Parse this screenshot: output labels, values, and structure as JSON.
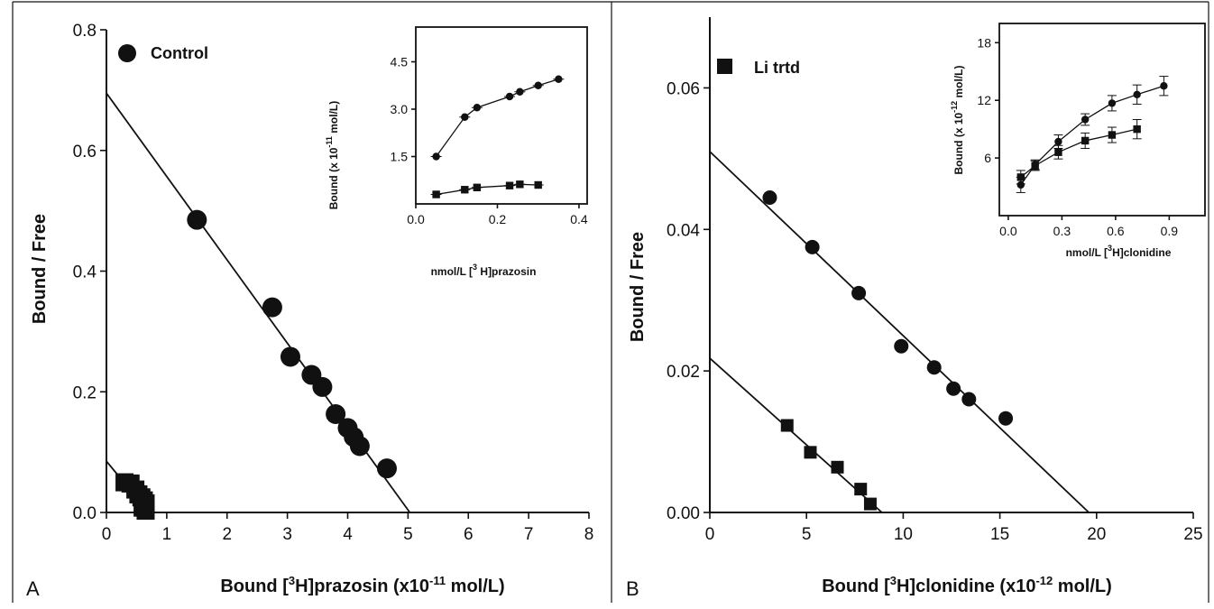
{
  "chart_data": [
    {
      "panel_label": "A",
      "type": "scatter",
      "xlabel": "Bound [3H]prazosin (x10-11 mol/L)",
      "xlabel_parts": {
        "pre": "Bound [",
        "sup1": "3",
        "mid": "H]prazosin (x10",
        "sup2": "-11",
        "post": " mol/L)"
      },
      "ylabel": "Bound / Free",
      "xlim": [
        0,
        8
      ],
      "ylim": [
        0,
        0.8
      ],
      "xticks": [
        "0",
        "1",
        "2",
        "3",
        "4",
        "5",
        "6",
        "7",
        "8"
      ],
      "yticks": [
        "0.0",
        "0.2",
        "0.4",
        "0.6",
        "0.8"
      ],
      "legend": [
        {
          "label": "Control",
          "marker": "circle"
        }
      ],
      "series": [
        {
          "marker": "circle",
          "points": [
            [
              1.5,
              0.485
            ],
            [
              2.75,
              0.34
            ],
            [
              3.05,
              0.258
            ],
            [
              3.4,
              0.228
            ],
            [
              3.58,
              0.208
            ],
            [
              3.8,
              0.163
            ],
            [
              4.0,
              0.14
            ],
            [
              4.1,
              0.125
            ],
            [
              4.2,
              0.11
            ],
            [
              4.65,
              0.073
            ]
          ]
        },
        {
          "marker": "square",
          "points": [
            [
              0.3,
              0.05
            ],
            [
              0.4,
              0.048
            ],
            [
              0.48,
              0.038
            ],
            [
              0.53,
              0.03
            ],
            [
              0.58,
              0.025
            ],
            [
              0.62,
              0.02
            ],
            [
              0.65,
              0.015
            ],
            [
              0.6,
              0.008
            ],
            [
              0.65,
              0.003
            ]
          ]
        }
      ],
      "fit_lines": [
        {
          "from": [
            0,
            0.695
          ],
          "to": [
            5.03,
            0
          ]
        },
        {
          "from": [
            0,
            0.085
          ],
          "to": [
            0.7,
            0
          ]
        }
      ],
      "inset": {
        "xlabel": "nmol/L [3H]prazosin",
        "xlabel_parts": {
          "pre": "nmol/L [",
          "sup1": "3",
          "post": " H]prazosin"
        },
        "ylabel": "Bound (x 10-11 mol/L)",
        "ylabel_parts": {
          "pre": "Bound (x 10",
          "sup": "-11",
          "post": " mol/L)"
        },
        "xlim": [
          0,
          0.42
        ],
        "ylim": [
          0,
          5.6
        ],
        "xticks": [
          {
            "v": 0,
            "t": "0.0"
          },
          {
            "v": 0.2,
            "t": "0.2"
          },
          {
            "v": 0.4,
            "t": "0.4"
          }
        ],
        "yticks": [
          {
            "v": 1.5,
            "t": "1.5"
          },
          {
            "v": 3.0,
            "t": "3.0"
          },
          {
            "v": 4.5,
            "t": "4.5"
          }
        ],
        "series": [
          {
            "marker": "circle",
            "points": [
              [
                0.05,
                1.5
              ],
              [
                0.12,
                2.75
              ],
              [
                0.15,
                3.05
              ],
              [
                0.23,
                3.4
              ],
              [
                0.255,
                3.55
              ],
              [
                0.3,
                3.75
              ],
              [
                0.35,
                3.95
              ]
            ]
          },
          {
            "marker": "square",
            "points": [
              [
                0.05,
                0.3
              ],
              [
                0.12,
                0.45
              ],
              [
                0.15,
                0.52
              ],
              [
                0.23,
                0.58
              ],
              [
                0.255,
                0.62
              ],
              [
                0.3,
                0.6
              ]
            ]
          }
        ]
      }
    },
    {
      "panel_label": "B",
      "type": "scatter",
      "xlabel": "Bound [3H]clonidine (x10-12 mol/L)",
      "xlabel_parts": {
        "pre": "Bound [",
        "sup1": "3",
        "mid": "H]clonidine (x10",
        "sup2": "-12",
        "post": " mol/L)"
      },
      "ylabel": "Bound / Free",
      "xlim": [
        0,
        25
      ],
      "ylim": [
        0,
        0.07
      ],
      "xticks": [
        "0",
        "5",
        "10",
        "15",
        "20",
        "25"
      ],
      "yticks": [
        "0.00",
        "0.02",
        "0.04",
        "0.06"
      ],
      "legend": [
        {
          "label": "Li trtd",
          "marker": "square"
        }
      ],
      "series": [
        {
          "marker": "circle",
          "points": [
            [
              3.1,
              0.0445
            ],
            [
              5.3,
              0.0375
            ],
            [
              7.7,
              0.031
            ],
            [
              9.9,
              0.0235
            ],
            [
              11.6,
              0.0205
            ],
            [
              12.6,
              0.0175
            ],
            [
              13.4,
              0.016
            ],
            [
              15.3,
              0.0133
            ]
          ]
        },
        {
          "marker": "square",
          "points": [
            [
              4.0,
              0.0123
            ],
            [
              5.2,
              0.0085
            ],
            [
              6.6,
              0.0064
            ],
            [
              7.8,
              0.0033
            ],
            [
              8.3,
              0.0012
            ]
          ]
        }
      ],
      "fit_lines": [
        {
          "from": [
            0,
            0.051
          ],
          "to": [
            19.6,
            0
          ]
        },
        {
          "from": [
            0,
            0.0218
          ],
          "to": [
            8.9,
            0
          ]
        }
      ],
      "inset": {
        "xlabel": "nmol/L [3H]clonidine",
        "xlabel_parts": {
          "pre": "nmol/L [",
          "sup1": "3",
          "post": "H]clonidine"
        },
        "ylabel": "Bound (x 10-12 mol/L)",
        "ylabel_parts": {
          "pre": "Bound (x 10",
          "sup": "-12",
          "post": " mol/L)"
        },
        "xlim": [
          -0.05,
          1.1
        ],
        "ylim": [
          0,
          20
        ],
        "xticks": [
          {
            "v": 0,
            "t": "0.0"
          },
          {
            "v": 0.3,
            "t": "0.3"
          },
          {
            "v": 0.6,
            "t": "0.6"
          },
          {
            "v": 0.9,
            "t": "0.9"
          }
        ],
        "yticks": [
          {
            "v": 6,
            "t": "6"
          },
          {
            "v": 12,
            "t": "12"
          },
          {
            "v": 18,
            "t": "18"
          }
        ],
        "series": [
          {
            "marker": "circle",
            "points": [
              [
                0.07,
                3.2,
                0.8
              ],
              [
                0.15,
                5.3,
                0.5
              ],
              [
                0.28,
                7.7,
                0.7
              ],
              [
                0.43,
                10.0,
                0.6
              ],
              [
                0.58,
                11.7,
                0.8
              ],
              [
                0.72,
                12.6,
                1.0
              ],
              [
                0.87,
                13.5,
                1.0
              ]
            ]
          },
          {
            "marker": "square",
            "points": [
              [
                0.07,
                4.0,
                0.7
              ],
              [
                0.15,
                5.2,
                0.5
              ],
              [
                0.28,
                6.6,
                0.7
              ],
              [
                0.43,
                7.8,
                0.8
              ],
              [
                0.58,
                8.4,
                0.8
              ],
              [
                0.72,
                9.0,
                1.0
              ]
            ]
          }
        ]
      }
    }
  ]
}
